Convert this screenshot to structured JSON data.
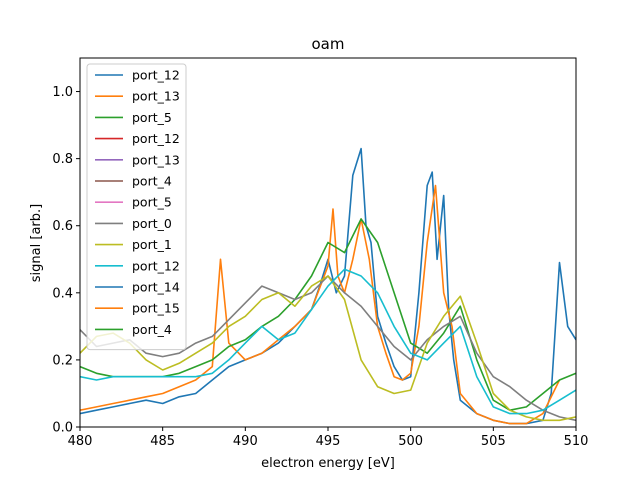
{
  "chart_data": {
    "type": "line",
    "title": "oam",
    "xlabel": "electron energy [eV]",
    "ylabel": "signal [arb.]",
    "xlim": [
      480,
      510
    ],
    "ylim": [
      0,
      1.1
    ],
    "xticks": [
      "480",
      "485",
      "490",
      "495",
      "500",
      "505",
      "510"
    ],
    "yticks": [
      "0.0",
      "0.2",
      "0.4",
      "0.6",
      "0.8",
      "1.0"
    ],
    "grid": false,
    "legend_position": "upper-left",
    "series": [
      {
        "name": "port_12",
        "color": "#1f77b4",
        "x": [
          480,
          481,
          482,
          483,
          484,
          485,
          486,
          487,
          488,
          489,
          490,
          491,
          492,
          493,
          494,
          494.5,
          495,
          495.5,
          496,
          496.5,
          497,
          497.3,
          497.6,
          498,
          498.5,
          499,
          499.5,
          500,
          500.5,
          501,
          501.3,
          501.6,
          502,
          502.3,
          502.6,
          503,
          504,
          505,
          506,
          507,
          508,
          508.5,
          509,
          509.5,
          510
        ],
        "y": [
          0.04,
          0.05,
          0.06,
          0.07,
          0.08,
          0.07,
          0.09,
          0.1,
          0.14,
          0.18,
          0.2,
          0.22,
          0.25,
          0.3,
          0.35,
          0.42,
          0.5,
          0.4,
          0.45,
          0.75,
          0.83,
          0.6,
          0.55,
          0.33,
          0.25,
          0.18,
          0.14,
          0.15,
          0.4,
          0.72,
          0.76,
          0.5,
          0.69,
          0.35,
          0.2,
          0.08,
          0.04,
          0.02,
          0.01,
          0.01,
          0.02,
          0.1,
          0.49,
          0.3,
          0.26
        ]
      },
      {
        "name": "port_13",
        "color": "#ff7f0e",
        "x": [
          480,
          481,
          482,
          483,
          484,
          485,
          486,
          487,
          488,
          488.5,
          489,
          490,
          491,
          492,
          493,
          494,
          495,
          495.3,
          495.6,
          496,
          496.5,
          497,
          497.5,
          498,
          498.5,
          499,
          499.5,
          500,
          500.5,
          501,
          501.5,
          502,
          502.5,
          503,
          504,
          505,
          506,
          507,
          508,
          509
        ],
        "y": [
          0.05,
          0.06,
          0.07,
          0.08,
          0.09,
          0.1,
          0.12,
          0.14,
          0.18,
          0.5,
          0.25,
          0.2,
          0.22,
          0.26,
          0.3,
          0.35,
          0.48,
          0.65,
          0.45,
          0.4,
          0.5,
          0.62,
          0.5,
          0.3,
          0.22,
          0.15,
          0.14,
          0.16,
          0.3,
          0.55,
          0.72,
          0.4,
          0.3,
          0.1,
          0.04,
          0.02,
          0.01,
          0.01,
          0.04,
          0.14
        ]
      },
      {
        "name": "port_5",
        "color": "#2ca02c",
        "x": [
          480,
          481,
          482,
          483,
          484,
          485,
          486,
          487,
          488,
          489,
          490,
          491,
          492,
          493,
          494,
          495,
          496,
          497,
          498,
          499,
          500,
          501,
          502,
          503,
          504,
          505,
          506,
          507,
          508,
          509,
          510
        ],
        "y": [
          0.18,
          0.16,
          0.15,
          0.15,
          0.15,
          0.15,
          0.16,
          0.18,
          0.2,
          0.24,
          0.26,
          0.3,
          0.33,
          0.38,
          0.45,
          0.55,
          0.52,
          0.62,
          0.55,
          0.4,
          0.25,
          0.22,
          0.28,
          0.36,
          0.2,
          0.08,
          0.05,
          0.06,
          0.1,
          0.14,
          0.16
        ]
      },
      {
        "name": "port_12",
        "color": "#d62728",
        "x": [],
        "y": []
      },
      {
        "name": "port_13",
        "color": "#9467bd",
        "x": [],
        "y": []
      },
      {
        "name": "port_4",
        "color": "#8c564b",
        "x": [],
        "y": []
      },
      {
        "name": "port_5",
        "color": "#e377c2",
        "x": [],
        "y": []
      },
      {
        "name": "port_0",
        "color": "#7f7f7f",
        "x": [
          480,
          481,
          482,
          483,
          484,
          485,
          486,
          487,
          488,
          489,
          490,
          491,
          492,
          493,
          494,
          495,
          496,
          497,
          498,
          499,
          500,
          501,
          502,
          503,
          504,
          505,
          506,
          507,
          508,
          509,
          510
        ],
        "y": [
          0.29,
          0.24,
          0.25,
          0.26,
          0.22,
          0.21,
          0.22,
          0.25,
          0.27,
          0.32,
          0.37,
          0.42,
          0.4,
          0.38,
          0.4,
          0.45,
          0.4,
          0.36,
          0.3,
          0.24,
          0.2,
          0.26,
          0.3,
          0.33,
          0.22,
          0.15,
          0.12,
          0.08,
          0.05,
          0.03,
          0.02
        ]
      },
      {
        "name": "port_1",
        "color": "#bcbd22",
        "x": [
          480,
          481,
          482,
          483,
          484,
          485,
          486,
          487,
          488,
          489,
          490,
          491,
          492,
          493,
          494,
          495,
          496,
          497,
          498,
          499,
          500,
          501,
          502,
          503,
          504,
          505,
          506,
          507,
          508,
          509,
          510
        ],
        "y": [
          0.22,
          0.27,
          0.28,
          0.25,
          0.2,
          0.17,
          0.19,
          0.22,
          0.25,
          0.3,
          0.33,
          0.38,
          0.4,
          0.36,
          0.42,
          0.45,
          0.38,
          0.2,
          0.12,
          0.1,
          0.11,
          0.25,
          0.33,
          0.39,
          0.25,
          0.1,
          0.05,
          0.03,
          0.02,
          0.02,
          0.03
        ]
      },
      {
        "name": "port_12",
        "color": "#17becf",
        "x": [
          480,
          481,
          482,
          483,
          484,
          485,
          486,
          487,
          488,
          489,
          490,
          491,
          492,
          493,
          494,
          495,
          496,
          497,
          498,
          499,
          500,
          501,
          502,
          503,
          504,
          505,
          506,
          507,
          508,
          509,
          510
        ],
        "y": [
          0.15,
          0.14,
          0.15,
          0.15,
          0.15,
          0.15,
          0.15,
          0.15,
          0.16,
          0.2,
          0.25,
          0.3,
          0.26,
          0.28,
          0.35,
          0.42,
          0.47,
          0.45,
          0.4,
          0.3,
          0.22,
          0.2,
          0.25,
          0.3,
          0.15,
          0.06,
          0.04,
          0.04,
          0.05,
          0.08,
          0.11
        ]
      },
      {
        "name": "port_14",
        "color": "#1f77b4",
        "x": [],
        "y": []
      },
      {
        "name": "port_15",
        "color": "#ff7f0e",
        "x": [],
        "y": []
      },
      {
        "name": "port_4",
        "color": "#2ca02c",
        "x": [],
        "y": []
      }
    ]
  }
}
